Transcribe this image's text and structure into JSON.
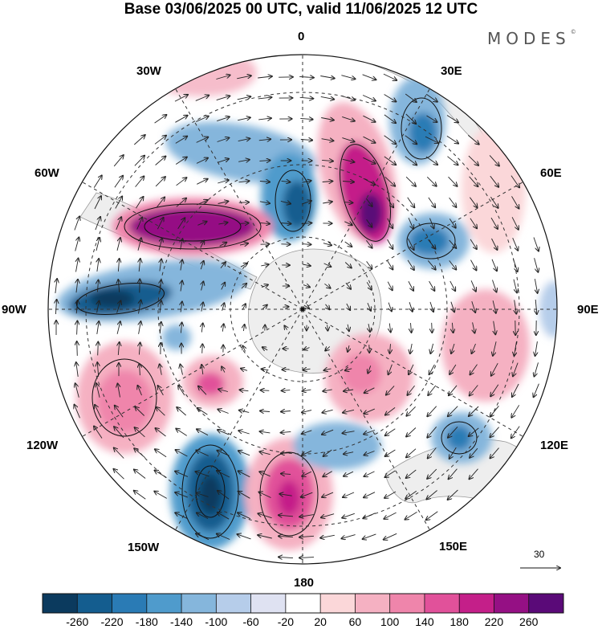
{
  "title": "Base 03/06/2025 00 UTC, valid 11/06/2025 12 UTC",
  "logo_text": "MODES",
  "logo_mark": "©",
  "longitude_labels": [
    "0",
    "30E",
    "60E",
    "90E",
    "120E",
    "150E",
    "180",
    "150W",
    "120W",
    "90W",
    "60W",
    "30W"
  ],
  "reference_vector_label": "30",
  "colorbar": {
    "labels": [
      "-260",
      "-220",
      "-180",
      "-140",
      "-100",
      "-60",
      "-20",
      "20",
      "60",
      "100",
      "140",
      "180",
      "220",
      "260"
    ],
    "colors": [
      "#0b3a5e",
      "#145d8f",
      "#2a7bb5",
      "#4f9bcc",
      "#85b6dc",
      "#b6cdea",
      "#dfe2f2",
      "#ffffff",
      "#fbd7d9",
      "#f5b1c2",
      "#ef85ab",
      "#e1519a",
      "#c41f89",
      "#951084",
      "#5a0a78"
    ]
  }
}
